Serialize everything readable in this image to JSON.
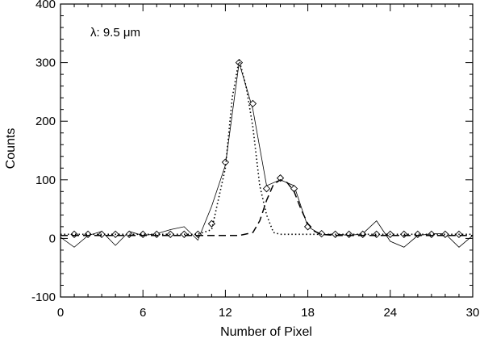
{
  "chart_data": {
    "type": "line",
    "title": "",
    "xlabel": "Number of Pixel",
    "ylabel": "Counts",
    "annotation": "λ: 9.5 μm",
    "xlim": [
      0,
      30
    ],
    "ylim": [
      -100,
      400
    ],
    "xticks": [
      0,
      6,
      12,
      18,
      24,
      30
    ],
    "yticks": [
      -100,
      0,
      100,
      200,
      300,
      400
    ],
    "grid": false,
    "legend": "none",
    "series": [
      {
        "style": "solid",
        "x": [
          0,
          1,
          2,
          3,
          4,
          5,
          6,
          7,
          8,
          9,
          10,
          11,
          12,
          13,
          14,
          15,
          16,
          17,
          18,
          19,
          20,
          21,
          22,
          23,
          24,
          25,
          26,
          27,
          28,
          29,
          30
        ],
        "y": [
          2,
          -15,
          5,
          12,
          -12,
          12,
          5,
          8,
          15,
          20,
          -3,
          55,
          125,
          300,
          220,
          90,
          100,
          90,
          20,
          6,
          8,
          5,
          8,
          30,
          -5,
          -15,
          5,
          8,
          8,
          -15,
          5
        ]
      },
      {
        "style": "diamond-markers",
        "x": [
          1,
          2,
          3,
          4,
          5,
          6,
          7,
          8,
          9,
          10,
          11,
          12,
          13,
          14,
          15,
          16,
          17,
          18,
          19,
          20,
          21,
          22,
          23,
          24,
          25,
          26,
          27,
          28,
          29
        ],
        "y": [
          7,
          7,
          7,
          7,
          7,
          7,
          7,
          7,
          7,
          7,
          25,
          130,
          300,
          230,
          85,
          103,
          85,
          20,
          8,
          7,
          7,
          7,
          7,
          7,
          7,
          7,
          7,
          7,
          7
        ]
      },
      {
        "style": "dotted",
        "x": [
          0,
          1,
          2,
          3,
          4,
          5,
          6,
          7,
          8,
          9,
          10,
          11,
          12,
          12.5,
          13,
          13.5,
          14,
          14.5,
          15,
          15.5,
          16,
          17,
          18,
          19,
          20,
          21,
          22,
          23,
          24,
          25,
          26,
          27,
          28,
          29,
          30
        ],
        "y": [
          7,
          7,
          7,
          7,
          7,
          7,
          7,
          7,
          7,
          7,
          7,
          15,
          120,
          240,
          305,
          260,
          190,
          90,
          40,
          10,
          7,
          7,
          7,
          7,
          7,
          7,
          7,
          7,
          7,
          7,
          7,
          7,
          7,
          7,
          7
        ]
      },
      {
        "style": "dashed",
        "x": [
          0,
          1,
          2,
          3,
          4,
          5,
          6,
          7,
          8,
          9,
          10,
          11,
          12,
          13,
          14,
          14.5,
          15,
          15.5,
          16,
          16.5,
          17,
          17.5,
          18,
          18.5,
          19,
          20,
          21,
          22,
          23,
          24,
          25,
          26,
          27,
          28,
          29,
          30
        ],
        "y": [
          5,
          5,
          5,
          5,
          5,
          5,
          5,
          5,
          5,
          5,
          5,
          5,
          5,
          5,
          10,
          30,
          65,
          92,
          100,
          95,
          80,
          50,
          25,
          12,
          7,
          5,
          5,
          5,
          5,
          5,
          5,
          5,
          5,
          5,
          5,
          5
        ]
      }
    ]
  }
}
